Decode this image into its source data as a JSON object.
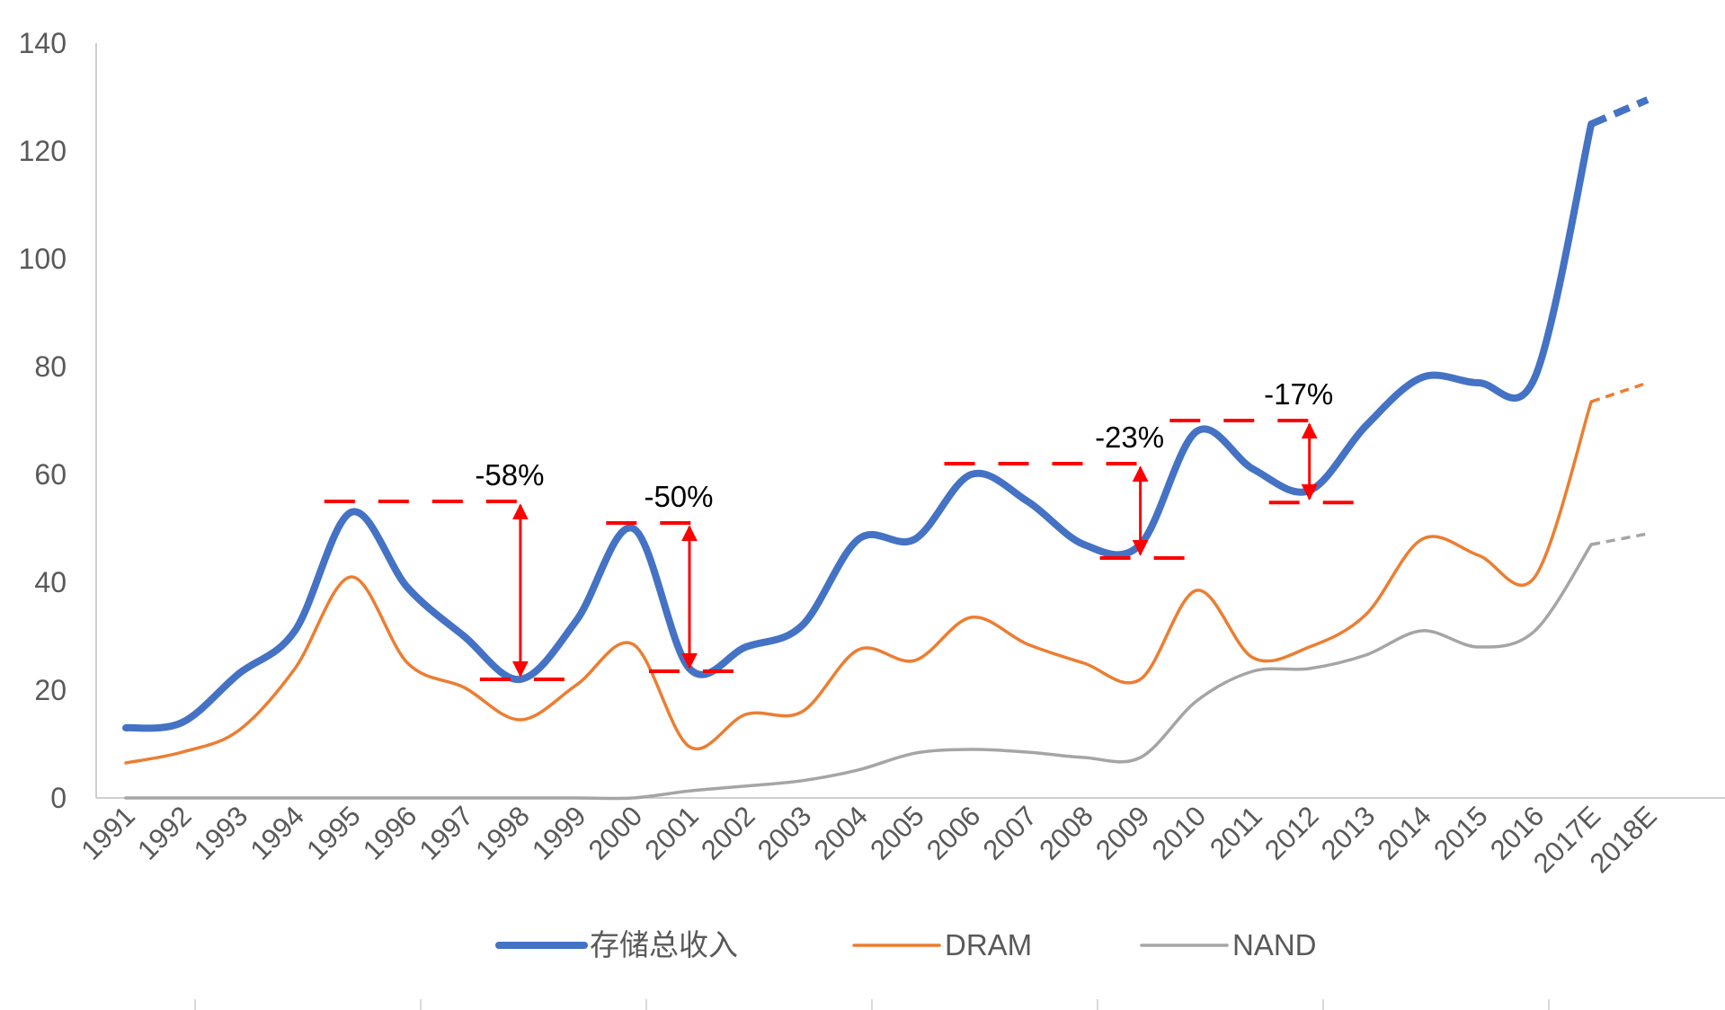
{
  "chart_data": {
    "type": "line",
    "title": "",
    "xlabel": "",
    "ylabel": "",
    "ylim": [
      0,
      140
    ],
    "y_ticks": [
      0,
      20,
      40,
      60,
      80,
      100,
      120,
      140
    ],
    "grid": false,
    "legend_placement": "bottom",
    "categories": [
      "1991",
      "1992",
      "1993",
      "1994",
      "1995",
      "1996",
      "1997",
      "1998",
      "1999",
      "2000",
      "2001",
      "2002",
      "2003",
      "2004",
      "2005",
      "2006",
      "2007",
      "2008",
      "2009",
      "2010",
      "2011",
      "2012",
      "2013",
      "2014",
      "2015",
      "2016",
      "2017E",
      "2018E"
    ],
    "forecast_categories": [
      "2017E",
      "2018E"
    ],
    "series": [
      {
        "name": "存储总收入",
        "color": "#4472C4",
        "values": [
          13,
          14,
          23,
          31,
          53,
          39,
          30,
          22,
          33,
          50,
          24,
          28,
          32,
          48,
          48,
          60,
          55,
          47,
          47,
          68,
          61,
          57,
          69,
          78,
          77,
          78,
          125,
          129.5
        ]
      },
      {
        "name": "DRAM",
        "color": "#ED7D31",
        "values": [
          6.5,
          8.5,
          12.5,
          24,
          41,
          25,
          20.5,
          14.5,
          21,
          28.5,
          9.5,
          15.5,
          16,
          27.5,
          25.5,
          33.5,
          28.5,
          25,
          22,
          38.5,
          26,
          28,
          34,
          48,
          45,
          41,
          73.5,
          77
        ]
      },
      {
        "name": "NAND",
        "color": "#A5A5A5",
        "values": [
          0,
          0,
          0,
          0,
          0,
          0,
          0,
          0,
          0,
          0,
          1.3,
          2.2,
          3.2,
          5.2,
          8.3,
          9,
          8.5,
          7.5,
          7.5,
          18,
          23.5,
          24,
          26.5,
          31,
          28,
          31,
          47,
          49
        ]
      }
    ],
    "annotations": [
      {
        "label": "-58%",
        "top_category": "1995",
        "top_value": 55,
        "bottom_category": "1998",
        "bottom_value": 22
      },
      {
        "label": "-50%",
        "top_category": "2000",
        "top_value": 51,
        "bottom_category": "2001",
        "bottom_value": 23.5
      },
      {
        "label": "-23%",
        "top_category": "2006",
        "top_value": 62,
        "bottom_category": "2009",
        "bottom_value": 44.5
      },
      {
        "label": "-17%",
        "top_category": "2010",
        "top_value": 70,
        "bottom_category": "2012",
        "bottom_value": 54.8
      }
    ],
    "annotation_color": "#FF0000"
  }
}
